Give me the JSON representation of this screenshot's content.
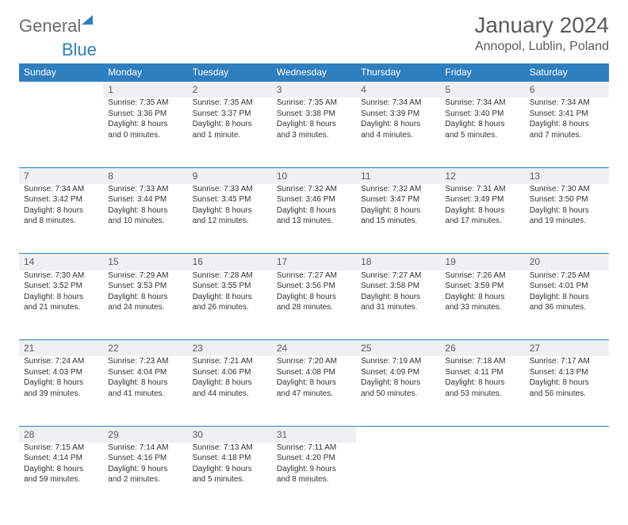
{
  "brand": {
    "part1": "General",
    "part2": "Blue"
  },
  "title": "January 2024",
  "location": "Annopol, Lublin, Poland",
  "colors": {
    "header_bg": "#2f7fbf",
    "header_text": "#ffffff",
    "daynum_bg": "#eef0f2",
    "daynum_border": "#2f7fbf",
    "body_text": "#333333",
    "title_text": "#5a5a5a"
  },
  "weekdays": [
    "Sunday",
    "Monday",
    "Tuesday",
    "Wednesday",
    "Thursday",
    "Friday",
    "Saturday"
  ],
  "weeks": [
    {
      "nums": [
        "",
        "1",
        "2",
        "3",
        "4",
        "5",
        "6"
      ],
      "cells": [
        null,
        {
          "sunrise": "Sunrise: 7:35 AM",
          "sunset": "Sunset: 3:36 PM",
          "dl1": "Daylight: 8 hours",
          "dl2": "and 0 minutes."
        },
        {
          "sunrise": "Sunrise: 7:35 AM",
          "sunset": "Sunset: 3:37 PM",
          "dl1": "Daylight: 8 hours",
          "dl2": "and 1 minute."
        },
        {
          "sunrise": "Sunrise: 7:35 AM",
          "sunset": "Sunset: 3:38 PM",
          "dl1": "Daylight: 8 hours",
          "dl2": "and 3 minutes."
        },
        {
          "sunrise": "Sunrise: 7:34 AM",
          "sunset": "Sunset: 3:39 PM",
          "dl1": "Daylight: 8 hours",
          "dl2": "and 4 minutes."
        },
        {
          "sunrise": "Sunrise: 7:34 AM",
          "sunset": "Sunset: 3:40 PM",
          "dl1": "Daylight: 8 hours",
          "dl2": "and 5 minutes."
        },
        {
          "sunrise": "Sunrise: 7:34 AM",
          "sunset": "Sunset: 3:41 PM",
          "dl1": "Daylight: 8 hours",
          "dl2": "and 7 minutes."
        }
      ]
    },
    {
      "nums": [
        "7",
        "8",
        "9",
        "10",
        "11",
        "12",
        "13"
      ],
      "cells": [
        {
          "sunrise": "Sunrise: 7:34 AM",
          "sunset": "Sunset: 3:42 PM",
          "dl1": "Daylight: 8 hours",
          "dl2": "and 8 minutes."
        },
        {
          "sunrise": "Sunrise: 7:33 AM",
          "sunset": "Sunset: 3:44 PM",
          "dl1": "Daylight: 8 hours",
          "dl2": "and 10 minutes."
        },
        {
          "sunrise": "Sunrise: 7:33 AM",
          "sunset": "Sunset: 3:45 PM",
          "dl1": "Daylight: 8 hours",
          "dl2": "and 12 minutes."
        },
        {
          "sunrise": "Sunrise: 7:32 AM",
          "sunset": "Sunset: 3:46 PM",
          "dl1": "Daylight: 8 hours",
          "dl2": "and 13 minutes."
        },
        {
          "sunrise": "Sunrise: 7:32 AM",
          "sunset": "Sunset: 3:47 PM",
          "dl1": "Daylight: 8 hours",
          "dl2": "and 15 minutes."
        },
        {
          "sunrise": "Sunrise: 7:31 AM",
          "sunset": "Sunset: 3:49 PM",
          "dl1": "Daylight: 8 hours",
          "dl2": "and 17 minutes."
        },
        {
          "sunrise": "Sunrise: 7:30 AM",
          "sunset": "Sunset: 3:50 PM",
          "dl1": "Daylight: 8 hours",
          "dl2": "and 19 minutes."
        }
      ]
    },
    {
      "nums": [
        "14",
        "15",
        "16",
        "17",
        "18",
        "19",
        "20"
      ],
      "cells": [
        {
          "sunrise": "Sunrise: 7:30 AM",
          "sunset": "Sunset: 3:52 PM",
          "dl1": "Daylight: 8 hours",
          "dl2": "and 21 minutes."
        },
        {
          "sunrise": "Sunrise: 7:29 AM",
          "sunset": "Sunset: 3:53 PM",
          "dl1": "Daylight: 8 hours",
          "dl2": "and 24 minutes."
        },
        {
          "sunrise": "Sunrise: 7:28 AM",
          "sunset": "Sunset: 3:55 PM",
          "dl1": "Daylight: 8 hours",
          "dl2": "and 26 minutes."
        },
        {
          "sunrise": "Sunrise: 7:27 AM",
          "sunset": "Sunset: 3:56 PM",
          "dl1": "Daylight: 8 hours",
          "dl2": "and 28 minutes."
        },
        {
          "sunrise": "Sunrise: 7:27 AM",
          "sunset": "Sunset: 3:58 PM",
          "dl1": "Daylight: 8 hours",
          "dl2": "and 31 minutes."
        },
        {
          "sunrise": "Sunrise: 7:26 AM",
          "sunset": "Sunset: 3:59 PM",
          "dl1": "Daylight: 8 hours",
          "dl2": "and 33 minutes."
        },
        {
          "sunrise": "Sunrise: 7:25 AM",
          "sunset": "Sunset: 4:01 PM",
          "dl1": "Daylight: 8 hours",
          "dl2": "and 36 minutes."
        }
      ]
    },
    {
      "nums": [
        "21",
        "22",
        "23",
        "24",
        "25",
        "26",
        "27"
      ],
      "cells": [
        {
          "sunrise": "Sunrise: 7:24 AM",
          "sunset": "Sunset: 4:03 PM",
          "dl1": "Daylight: 8 hours",
          "dl2": "and 39 minutes."
        },
        {
          "sunrise": "Sunrise: 7:23 AM",
          "sunset": "Sunset: 4:04 PM",
          "dl1": "Daylight: 8 hours",
          "dl2": "and 41 minutes."
        },
        {
          "sunrise": "Sunrise: 7:21 AM",
          "sunset": "Sunset: 4:06 PM",
          "dl1": "Daylight: 8 hours",
          "dl2": "and 44 minutes."
        },
        {
          "sunrise": "Sunrise: 7:20 AM",
          "sunset": "Sunset: 4:08 PM",
          "dl1": "Daylight: 8 hours",
          "dl2": "and 47 minutes."
        },
        {
          "sunrise": "Sunrise: 7:19 AM",
          "sunset": "Sunset: 4:09 PM",
          "dl1": "Daylight: 8 hours",
          "dl2": "and 50 minutes."
        },
        {
          "sunrise": "Sunrise: 7:18 AM",
          "sunset": "Sunset: 4:11 PM",
          "dl1": "Daylight: 8 hours",
          "dl2": "and 53 minutes."
        },
        {
          "sunrise": "Sunrise: 7:17 AM",
          "sunset": "Sunset: 4:13 PM",
          "dl1": "Daylight: 8 hours",
          "dl2": "and 56 minutes."
        }
      ]
    },
    {
      "nums": [
        "28",
        "29",
        "30",
        "31",
        "",
        "",
        ""
      ],
      "cells": [
        {
          "sunrise": "Sunrise: 7:15 AM",
          "sunset": "Sunset: 4:14 PM",
          "dl1": "Daylight: 8 hours",
          "dl2": "and 59 minutes."
        },
        {
          "sunrise": "Sunrise: 7:14 AM",
          "sunset": "Sunset: 4:16 PM",
          "dl1": "Daylight: 9 hours",
          "dl2": "and 2 minutes."
        },
        {
          "sunrise": "Sunrise: 7:13 AM",
          "sunset": "Sunset: 4:18 PM",
          "dl1": "Daylight: 9 hours",
          "dl2": "and 5 minutes."
        },
        {
          "sunrise": "Sunrise: 7:11 AM",
          "sunset": "Sunset: 4:20 PM",
          "dl1": "Daylight: 9 hours",
          "dl2": "and 8 minutes."
        },
        null,
        null,
        null
      ]
    }
  ]
}
